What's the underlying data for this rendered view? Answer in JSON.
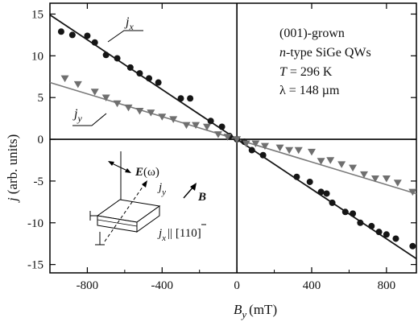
{
  "chart_data": {
    "type": "scatter",
    "xlabel_main": "B",
    "xlabel_sub": "y",
    "xlabel_unit": "(mT)",
    "ylabel_main": "j",
    "ylabel_unit": "(arb. units)",
    "xlim": [
      -1000,
      960
    ],
    "ylim": [
      -16,
      16.3
    ],
    "x_ticks": [
      -800,
      -400,
      0,
      400,
      800
    ],
    "y_ticks": [
      -15,
      -10,
      -5,
      0,
      5,
      10,
      15
    ],
    "legend_placement": "top-right",
    "annotation_lines": {
      "line1": "(001)-grown",
      "line2_italic": "n",
      "line2_rest": "-type SiGe QWs",
      "line3_T": "T",
      "line3_rest": " = 296 K",
      "line4": "λ = 148 µm"
    },
    "series": [
      {
        "name": "j_x",
        "label_main": "j",
        "label_sub": "x",
        "marker": "circle",
        "fit_slope": -0.0149,
        "values": [
          [
            -940,
            12.9
          ],
          [
            -880,
            12.5
          ],
          [
            -800,
            12.4
          ],
          [
            -760,
            11.6
          ],
          [
            -700,
            10.1
          ],
          [
            -640,
            9.7
          ],
          [
            -570,
            8.6
          ],
          [
            -520,
            7.9
          ],
          [
            -470,
            7.3
          ],
          [
            -420,
            6.8
          ],
          [
            -300,
            4.9
          ],
          [
            -250,
            4.9
          ],
          [
            -140,
            2.2
          ],
          [
            -80,
            1.5
          ],
          [
            -40,
            0.4
          ],
          [
            0,
            0.0
          ],
          [
            40,
            -0.3
          ],
          [
            80,
            -1.3
          ],
          [
            140,
            -1.9
          ],
          [
            320,
            -4.5
          ],
          [
            390,
            -5.1
          ],
          [
            450,
            -6.3
          ],
          [
            480,
            -6.5
          ],
          [
            510,
            -7.6
          ],
          [
            580,
            -8.7
          ],
          [
            620,
            -8.9
          ],
          [
            660,
            -10.0
          ],
          [
            720,
            -10.4
          ],
          [
            760,
            -11.1
          ],
          [
            800,
            -11.4
          ],
          [
            850,
            -11.9
          ],
          [
            940,
            -12.8
          ]
        ]
      },
      {
        "name": "j_y",
        "label_main": "j",
        "label_sub": "y",
        "marker": "triangle-down",
        "fit_slope": -0.0068,
        "values": [
          [
            -920,
            7.3
          ],
          [
            -850,
            6.6
          ],
          [
            -760,
            5.7
          ],
          [
            -700,
            5.0
          ],
          [
            -640,
            4.3
          ],
          [
            -580,
            3.8
          ],
          [
            -520,
            3.4
          ],
          [
            -460,
            3.2
          ],
          [
            -400,
            2.7
          ],
          [
            -340,
            2.4
          ],
          [
            -270,
            1.7
          ],
          [
            -220,
            1.7
          ],
          [
            -160,
            1.5
          ],
          [
            -100,
            0.6
          ],
          [
            -50,
            0.3
          ],
          [
            0,
            0.0
          ],
          [
            50,
            -0.5
          ],
          [
            100,
            -0.5
          ],
          [
            150,
            -0.8
          ],
          [
            230,
            -1.0
          ],
          [
            280,
            -1.3
          ],
          [
            330,
            -1.3
          ],
          [
            400,
            -1.5
          ],
          [
            450,
            -2.6
          ],
          [
            500,
            -2.5
          ],
          [
            560,
            -3.0
          ],
          [
            620,
            -3.4
          ],
          [
            680,
            -4.2
          ],
          [
            740,
            -4.7
          ],
          [
            800,
            -4.7
          ],
          [
            860,
            -5.2
          ],
          [
            940,
            -6.3
          ]
        ]
      }
    ],
    "inset": {
      "field_main": "E",
      "field_arg": "(ω)",
      "jy_main": "j",
      "jy_sub": "y",
      "jx_main": "j",
      "jx_sub": "x",
      "jx_direction": "|| [110]",
      "B_label": "B"
    }
  },
  "colors": {
    "jx_marker": "#151515",
    "jx_line": "#151515",
    "jy_marker": "#6f6f6f",
    "jy_line": "#7a7a7a",
    "axis": "#000000"
  }
}
